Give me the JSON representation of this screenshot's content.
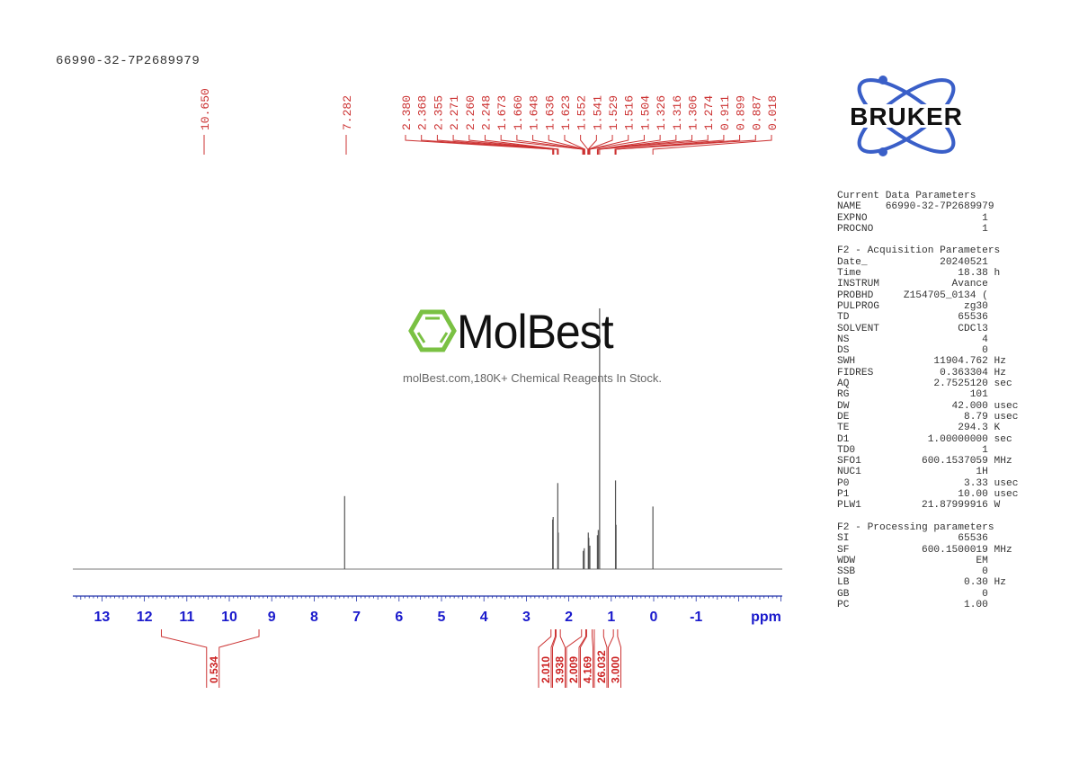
{
  "sample_name": "66990-32-7P2689979",
  "watermark": {
    "brand": "MolBest",
    "tagline": "molBest.com,180K+ Chemical Reagents In Stock.",
    "brand_color": "#7ac143"
  },
  "bruker_logo": {
    "text": "BRUKER",
    "orbit_color": "#3a5fc8"
  },
  "params": {
    "current": {
      "title": "Current Data Parameters",
      "rows": [
        [
          "NAME",
          "66990-32-7P2689979",
          ""
        ],
        [
          "EXPNO",
          "1",
          ""
        ],
        [
          "PROCNO",
          "1",
          ""
        ]
      ]
    },
    "acquisition": {
      "title": "F2 - Acquisition Parameters",
      "rows": [
        [
          "Date_",
          "20240521",
          ""
        ],
        [
          "Time",
          "18.38",
          "h"
        ],
        [
          "INSTRUM",
          "Avance",
          ""
        ],
        [
          "PROBHD",
          "Z154705_0134 (",
          ""
        ],
        [
          "PULPROG",
          "zg30",
          ""
        ],
        [
          "TD",
          "65536",
          ""
        ],
        [
          "SOLVENT",
          "CDCl3",
          ""
        ],
        [
          "NS",
          "4",
          ""
        ],
        [
          "DS",
          "0",
          ""
        ],
        [
          "SWH",
          "11904.762",
          "Hz"
        ],
        [
          "FIDRES",
          "0.363304",
          "Hz"
        ],
        [
          "AQ",
          "2.7525120",
          "sec"
        ],
        [
          "RG",
          "101",
          ""
        ],
        [
          "DW",
          "42.000",
          "usec"
        ],
        [
          "DE",
          "8.79",
          "usec"
        ],
        [
          "TE",
          "294.3",
          "K"
        ],
        [
          "D1",
          "1.00000000",
          "sec"
        ],
        [
          "TD0",
          "1",
          ""
        ],
        [
          "SFO1",
          "600.1537059",
          "MHz"
        ],
        [
          "NUC1",
          "1H",
          ""
        ],
        [
          "P0",
          "3.33",
          "usec"
        ],
        [
          "P1",
          "10.00",
          "usec"
        ],
        [
          "PLW1",
          "21.87999916",
          "W"
        ]
      ]
    },
    "processing": {
      "title": "F2 - Processing parameters",
      "rows": [
        [
          "SI",
          "65536",
          ""
        ],
        [
          "SF",
          "600.1500019",
          "MHz"
        ],
        [
          "WDW",
          "EM",
          ""
        ],
        [
          "SSB",
          "0",
          ""
        ],
        [
          "LB",
          "0.30",
          "Hz"
        ],
        [
          "GB",
          "0",
          ""
        ],
        [
          "PC",
          "1.00",
          ""
        ]
      ]
    }
  },
  "chart_data": {
    "type": "line",
    "title": "66990-32-7P2689979",
    "xlabel": "ppm",
    "ylabel": "",
    "xlim": [
      13.7,
      -3.0
    ],
    "x_reversed": true,
    "x_ticks": [
      13,
      12,
      11,
      10,
      9,
      8,
      7,
      6,
      5,
      4,
      3,
      2,
      1,
      0,
      -1
    ],
    "grid": false,
    "peak_labels": [
      10.65,
      7.282,
      2.38,
      2.368,
      2.355,
      2.271,
      2.26,
      2.248,
      1.673,
      1.66,
      1.648,
      1.636,
      1.623,
      1.552,
      1.541,
      1.529,
      1.516,
      1.504,
      1.326,
      1.316,
      1.306,
      1.274,
      0.911,
      0.899,
      0.887,
      0.018
    ],
    "peaks": [
      {
        "ppm": 7.282,
        "height": 0.28
      },
      {
        "ppm": 2.38,
        "height": 0.19
      },
      {
        "ppm": 2.368,
        "height": 0.2
      },
      {
        "ppm": 2.26,
        "height": 0.33
      },
      {
        "ppm": 2.248,
        "height": 0.14
      },
      {
        "ppm": 1.66,
        "height": 0.07
      },
      {
        "ppm": 1.636,
        "height": 0.08
      },
      {
        "ppm": 1.541,
        "height": 0.14
      },
      {
        "ppm": 1.529,
        "height": 0.12
      },
      {
        "ppm": 1.504,
        "height": 0.09
      },
      {
        "ppm": 1.326,
        "height": 0.13
      },
      {
        "ppm": 1.306,
        "height": 0.15
      },
      {
        "ppm": 1.274,
        "height": 1.0
      },
      {
        "ppm": 0.899,
        "height": 0.34
      },
      {
        "ppm": 0.887,
        "height": 0.17
      },
      {
        "ppm": 0.018,
        "height": 0.24
      }
    ],
    "integrals": [
      {
        "range": [
          11.6,
          9.3
        ],
        "value": 0.534
      },
      {
        "range": [
          2.42,
          2.32
        ],
        "value": 2.01
      },
      {
        "range": [
          2.3,
          2.2
        ],
        "value": 3.938
      },
      {
        "range": [
          1.7,
          1.6
        ],
        "value": 2.009
      },
      {
        "range": [
          1.58,
          1.45
        ],
        "value": 4.169
      },
      {
        "range": [
          1.4,
          1.18
        ],
        "value": 26.032
      },
      {
        "range": [
          0.95,
          0.85
        ],
        "value": 3.0
      }
    ]
  }
}
